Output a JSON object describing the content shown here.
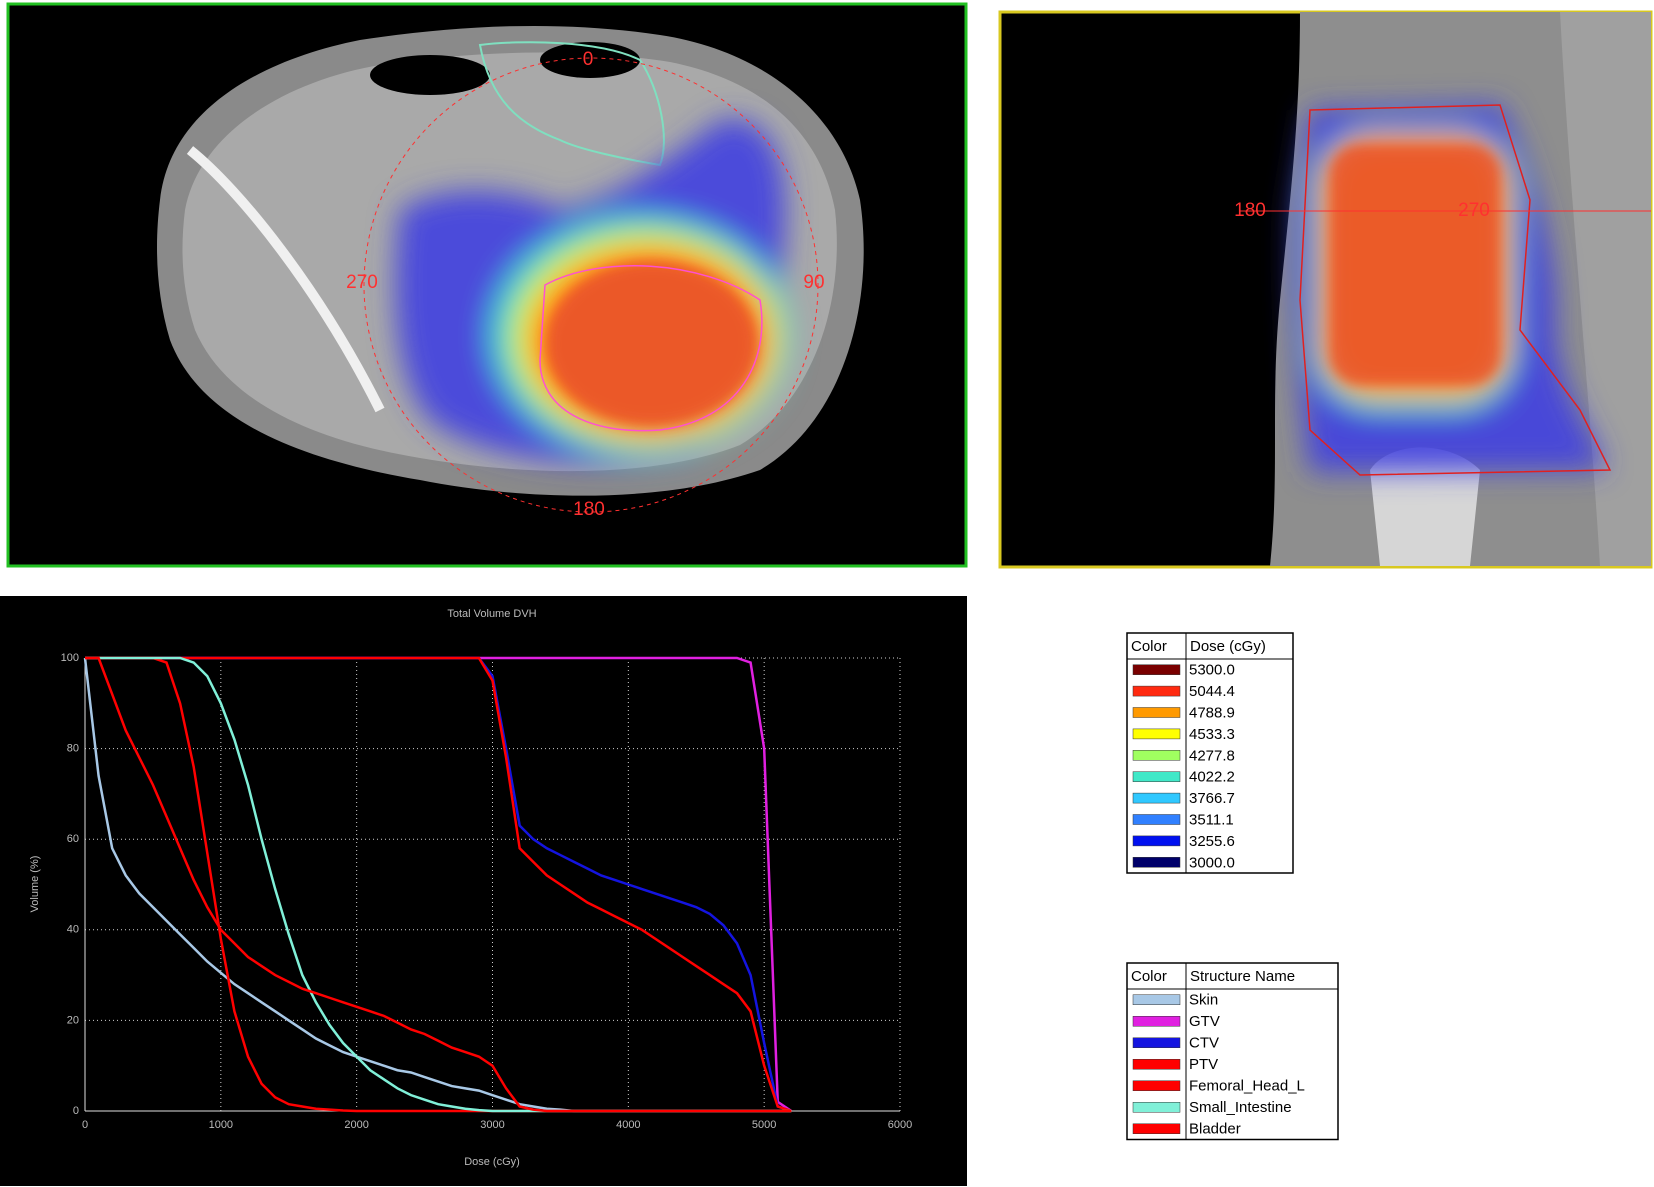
{
  "axial_view": {
    "angle_labels": [
      "0",
      "270",
      "90",
      "180"
    ]
  },
  "sagittal_view": {
    "angle_labels": [
      "180",
      "270"
    ]
  },
  "chart_data": {
    "type": "line",
    "title": "Total Volume DVH",
    "x_label": "Dose (cGy)",
    "y_label": "Volume (%)",
    "xlim": [
      0,
      6000
    ],
    "xticks": [
      0,
      1000,
      2000,
      3000,
      4000,
      5000,
      6000
    ],
    "ylim": [
      0,
      100
    ],
    "yticks": [
      0,
      20,
      40,
      60,
      80,
      100
    ],
    "grid": true,
    "x": [
      0,
      100,
      200,
      300,
      400,
      500,
      600,
      700,
      800,
      900,
      1000,
      1100,
      1200,
      1300,
      1400,
      1500,
      1600,
      1700,
      1800,
      1900,
      2000,
      2100,
      2200,
      2300,
      2400,
      2500,
      2600,
      2700,
      2800,
      2900,
      3000,
      3100,
      3200,
      3300,
      3400,
      3500,
      3600,
      3700,
      3800,
      3900,
      4000,
      4100,
      4200,
      4300,
      4400,
      4500,
      4600,
      4700,
      4800,
      4900,
      5000,
      5100,
      5200
    ],
    "series": [
      {
        "name": "Skin",
        "color": "#a8c8e6",
        "values": [
          100,
          74,
          58,
          52,
          48,
          45,
          42,
          39,
          36,
          33,
          30.5,
          28,
          26,
          24,
          22,
          20,
          18,
          16,
          14.5,
          13,
          12,
          11,
          10,
          9,
          8.5,
          7.5,
          6.5,
          5.5,
          5,
          4.5,
          3.5,
          2.5,
          1.5,
          1,
          0.5,
          0.3,
          0,
          0,
          0,
          0,
          0,
          0,
          0,
          0,
          0,
          0,
          0,
          0,
          0,
          0,
          0,
          0,
          0
        ]
      },
      {
        "name": "GTV",
        "color": "#e020e0",
        "values": [
          100,
          100,
          100,
          100,
          100,
          100,
          100,
          100,
          100,
          100,
          100,
          100,
          100,
          100,
          100,
          100,
          100,
          100,
          100,
          100,
          100,
          100,
          100,
          100,
          100,
          100,
          100,
          100,
          100,
          100,
          100,
          100,
          100,
          100,
          100,
          100,
          100,
          100,
          100,
          100,
          100,
          100,
          100,
          100,
          100,
          100,
          100,
          100,
          100,
          99,
          80,
          2,
          0
        ]
      },
      {
        "name": "CTV",
        "color": "#1414e0",
        "values": [
          100,
          100,
          100,
          100,
          100,
          100,
          100,
          100,
          100,
          100,
          100,
          100,
          100,
          100,
          100,
          100,
          100,
          100,
          100,
          100,
          100,
          100,
          100,
          100,
          100,
          100,
          100,
          100,
          100,
          100,
          96,
          80,
          63,
          60,
          58,
          56.5,
          55,
          53.5,
          52,
          51,
          50,
          49,
          48,
          47,
          46,
          45,
          43.5,
          41,
          37,
          30,
          15,
          1,
          0
        ]
      },
      {
        "name": "PTV",
        "color": "#ff0000",
        "values": [
          100,
          100,
          100,
          100,
          100,
          100,
          100,
          100,
          100,
          100,
          100,
          100,
          100,
          100,
          100,
          100,
          100,
          100,
          100,
          100,
          100,
          100,
          100,
          100,
          100,
          100,
          100,
          100,
          100,
          100,
          95,
          78,
          58,
          55,
          52,
          50,
          48,
          46,
          44.5,
          43,
          41.5,
          40,
          38,
          36,
          34,
          32,
          30,
          28,
          26,
          22,
          10,
          1,
          0
        ]
      },
      {
        "name": "Femoral_Head_L",
        "color": "#ff0000",
        "values": [
          100,
          100,
          100,
          100,
          100,
          100,
          99,
          90,
          76,
          57,
          38,
          22,
          12,
          6,
          3,
          1.5,
          1,
          0.5,
          0.3,
          0.1,
          0,
          0,
          0,
          0,
          0,
          0,
          0,
          0,
          0,
          0,
          0,
          0,
          0,
          0,
          0,
          0,
          0,
          0,
          0,
          0,
          0,
          0,
          0,
          0,
          0,
          0,
          0,
          0,
          0,
          0,
          0,
          0,
          0
        ]
      },
      {
        "name": "Small_Intestine",
        "color": "#80f0d8",
        "values": [
          100,
          100,
          100,
          100,
          100,
          100,
          100,
          100,
          99,
          96,
          90,
          82,
          72,
          60,
          49,
          39,
          30,
          24,
          19,
          15,
          12,
          9,
          7,
          5,
          3.5,
          2.5,
          1.5,
          1,
          0.5,
          0.2,
          0,
          0,
          0,
          0,
          0,
          0,
          0,
          0,
          0,
          0,
          0,
          0,
          0,
          0,
          0,
          0,
          0,
          0,
          0,
          0,
          0,
          0,
          0
        ]
      },
      {
        "name": "Bladder",
        "color": "#ff0000",
        "values": [
          100,
          100,
          92,
          84,
          78,
          72,
          65,
          58,
          51,
          45,
          40,
          37,
          34,
          32,
          30,
          28.5,
          27,
          26,
          25,
          24,
          23,
          22,
          21,
          19.5,
          18,
          17,
          15.5,
          14,
          13,
          12,
          10,
          5,
          1,
          0.3,
          0,
          0,
          0,
          0,
          0,
          0,
          0,
          0,
          0,
          0,
          0,
          0,
          0,
          0,
          0,
          0,
          0,
          0,
          0
        ]
      }
    ]
  },
  "dose_legend": {
    "headers": [
      "Color",
      "Dose (cGy)"
    ],
    "rows": [
      {
        "color": "#7a0000",
        "dose": "5300.0"
      },
      {
        "color": "#ff2a10",
        "dose": "5044.4"
      },
      {
        "color": "#ff9a00",
        "dose": "4788.9"
      },
      {
        "color": "#ffff00",
        "dose": "4533.3"
      },
      {
        "color": "#a0ff60",
        "dose": "4277.8"
      },
      {
        "color": "#40e8c8",
        "dose": "4022.2"
      },
      {
        "color": "#30c8ff",
        "dose": "3766.7"
      },
      {
        "color": "#3080ff",
        "dose": "3511.1"
      },
      {
        "color": "#0010f0",
        "dose": "3255.6"
      },
      {
        "color": "#00006a",
        "dose": "3000.0"
      }
    ]
  },
  "structure_legend": {
    "headers": [
      "Color",
      "Structure Name"
    ]
  }
}
